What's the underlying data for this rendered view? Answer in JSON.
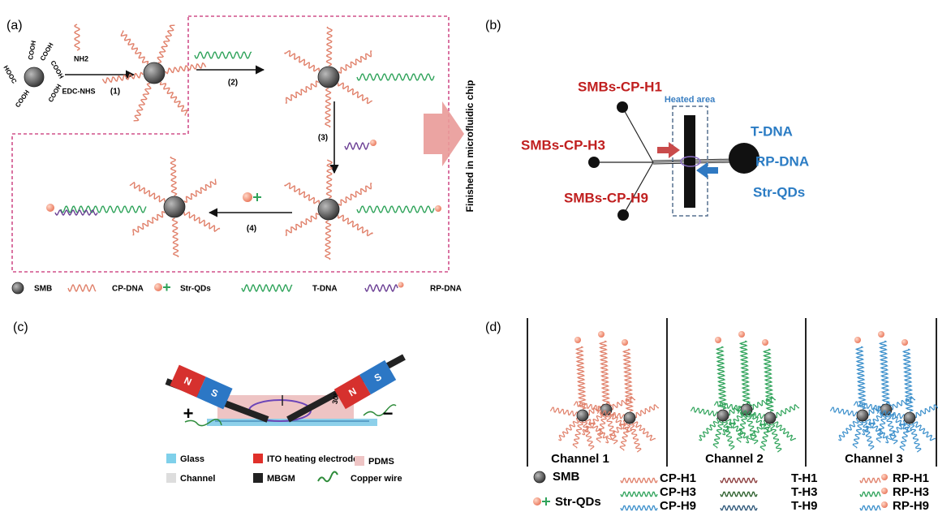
{
  "panel_a": {
    "label": "(a)",
    "bead_groups": [
      "COOH",
      "COOH",
      "COOH",
      "HOOC",
      "COOH",
      "COOH"
    ],
    "reagent": "NH2",
    "activator": "EDC-NHS",
    "steps": [
      "(1)",
      "(2)",
      "(3)",
      "(4)"
    ],
    "side_note": "Finished in microfluidic chip",
    "legend": [
      "SMB",
      "CP-DNA",
      "Str-QDs",
      "T-DNA",
      "RP-DNA"
    ]
  },
  "panel_b": {
    "label": "(b)",
    "inlets": [
      "SMBs-CP-H1",
      "SMBs-CP-H3",
      "SMBs-CP-H9"
    ],
    "heated": "Heated area",
    "reagents": [
      "T-DNA",
      "RP-DNA",
      "Str-QDs"
    ]
  },
  "panel_c": {
    "label": "(c)",
    "magnet_poles": [
      "N",
      "S",
      "N",
      "S"
    ],
    "terminals": [
      "+",
      "−"
    ],
    "angle": "30°",
    "legend": [
      "Glass",
      "ITO heating electrode",
      "PDMS",
      "Channel",
      "MBGM",
      "Copper wire"
    ]
  },
  "panel_d": {
    "label": "(d)",
    "channels": [
      "Channel 1",
      "Channel 2",
      "Channel 3"
    ],
    "legend": [
      "SMB",
      "Str-QDs"
    ],
    "probes": [
      [
        "CP-H1",
        "CP-H3",
        "CP-H9"
      ],
      [
        "T-H1",
        "T-H3",
        "T-H9"
      ],
      [
        "RP-H1",
        "RP-H3",
        "RP-H9"
      ]
    ]
  }
}
